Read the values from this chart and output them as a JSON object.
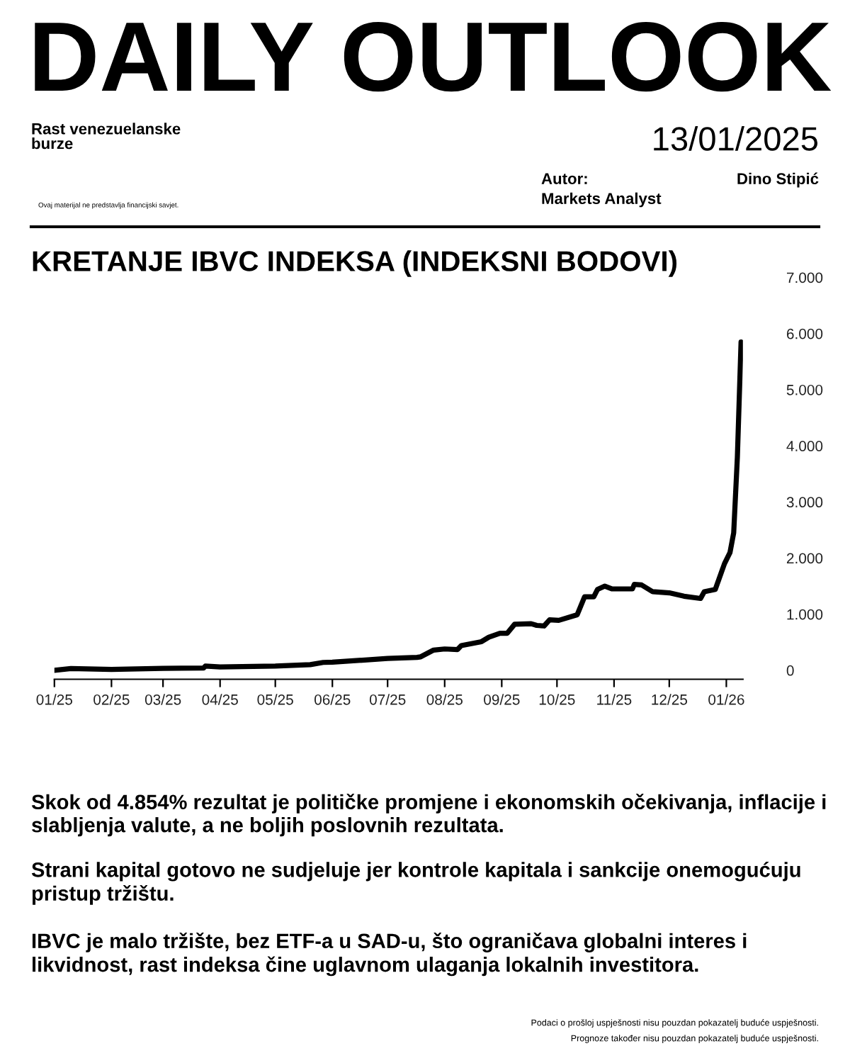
{
  "chart_data": {
    "type": "line",
    "title": "KRETANJE IBVC INDEKSA (INDEKSNI BODOVI)",
    "annotations": [
      "DAILY OUTLOOK",
      "Rast venezuelanske\nburze",
      "13/01/2025",
      "Autor:",
      "Dino Stipić",
      "Markets Analyst",
      "Ovaj materijal ne predstavlja financijski savjet.",
      "Skok od 4.854% rezultat je političke promjene i ekonomskih očekivanja, inflacije i slabljenja valute, a ne boljih poslovnih rezultata.",
      "Strani kapital gotovo ne sudjeluje jer kontrole kapitala i sankcije onemogućuju pristup tržištu.",
      "IBVC je malo tržište, bez ETF-a u SAD-u, što ograničava globalni interes i likvidnost, rast indeksa čine uglavnom ulaganja lokalnih investitora.",
      "Podaci o prošloj uspješnosti nisu pouzdan pokazatelj buduće uspješnosti.",
      "Prognoze također nisu pouzdan pokazatelj buduće uspješnosti."
    ],
    "series": [
      {
        "color": "#000000",
        "x": [
          "2025-01-01",
          "2025-01-10",
          "2025-02-01",
          "2025-03-01",
          "2025-03-23",
          "2025-03-24",
          "2025-04-01",
          "2025-05-01",
          "2025-05-20",
          "2025-05-27",
          "2025-06-01",
          "2025-07-01",
          "2025-07-17",
          "2025-07-19",
          "2025-07-26",
          "2025-08-01",
          "2025-08-08",
          "2025-08-10",
          "2025-08-21",
          "2025-08-25",
          "2025-08-31",
          "2025-09-04",
          "2025-09-08",
          "2025-09-17",
          "2025-09-20",
          "2025-09-24",
          "2025-09-27",
          "2025-10-02",
          "2025-10-12",
          "2025-10-16",
          "2025-10-21",
          "2025-10-23",
          "2025-10-27",
          "2025-10-31",
          "2025-11-11",
          "2025-11-12",
          "2025-11-16",
          "2025-11-22",
          "2025-12-01",
          "2025-12-09",
          "2025-12-18",
          "2025-12-20",
          "2025-12-26",
          "2025-12-31",
          "2026-01-03",
          "2026-01-05",
          "2026-01-07",
          "2026-01-09"
        ],
        "values": [
          0,
          30,
          15,
          35,
          40,
          75,
          60,
          75,
          100,
          140,
          145,
          210,
          230,
          240,
          360,
          380,
          370,
          440,
          510,
          590,
          660,
          660,
          820,
          830,
          800,
          790,
          900,
          890,
          990,
          1310,
          1310,
          1440,
          1500,
          1450,
          1450,
          1530,
          1520,
          1400,
          1380,
          1320,
          1280,
          1400,
          1440,
          1900,
          2100,
          2450,
          3800,
          5850
        ]
      }
    ],
    "xlim": [
      "2025-01-01",
      "2026-01-10"
    ],
    "xticks": [
      {
        "value": "2025-01-01",
        "label": "01/25"
      },
      {
        "value": "2025-02-01",
        "label": "02/25"
      },
      {
        "value": "2025-03-01",
        "label": "03/25"
      },
      {
        "value": "2025-04-01",
        "label": "04/25"
      },
      {
        "value": "2025-05-01",
        "label": "05/25"
      },
      {
        "value": "2025-06-01",
        "label": "06/25"
      },
      {
        "value": "2025-07-01",
        "label": "07/25"
      },
      {
        "value": "2025-08-01",
        "label": "08/25"
      },
      {
        "value": "2025-09-01",
        "label": "09/25"
      },
      {
        "value": "2025-10-01",
        "label": "10/25"
      },
      {
        "value": "2025-11-01",
        "label": "11/25"
      },
      {
        "value": "2025-12-01",
        "label": "12/25"
      },
      {
        "value": "2026-01-01",
        "label": "01/26"
      }
    ],
    "ylim": [
      -160,
      7000
    ],
    "yticks": [
      0,
      {
        "value": 1000,
        "label": "1.000"
      },
      {
        "value": 2000,
        "label": "2.000"
      },
      {
        "value": 3000,
        "label": "3.000"
      },
      {
        "value": 4000,
        "label": "4.000"
      },
      {
        "value": 5000,
        "label": "5.000"
      },
      {
        "value": 6000,
        "label": "6.000"
      },
      {
        "value": 7000,
        "label": "7.000"
      }
    ],
    "grid": false,
    "legend": false,
    "marker": "none",
    "line_style": "solid"
  }
}
